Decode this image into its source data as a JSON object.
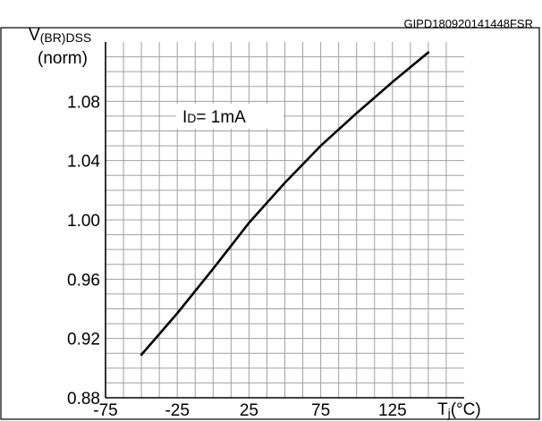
{
  "figure_id": "GIPD180920141448FSR",
  "chart_data": {
    "type": "line",
    "title": "",
    "ylabel": {
      "main": "V",
      "sub": "(BR)DSS",
      "unit": "(norm)"
    },
    "xlabel": {
      "main": "T",
      "sub": "j",
      "unit": "(°C)"
    },
    "xlim": [
      -75,
      175
    ],
    "ylim": [
      0.88,
      1.12
    ],
    "x_ticks": [
      -75,
      -25,
      25,
      75,
      125
    ],
    "y_ticks": [
      "0.88",
      "0.92",
      "0.96",
      "1.00",
      "1.04",
      "1.08"
    ],
    "annotation": {
      "main": "I",
      "sub": "D",
      "rest": "= 1mA"
    },
    "grid": true,
    "series": [
      {
        "x": [
          -50,
          -25,
          0,
          25,
          50,
          75,
          100,
          125,
          150
        ],
        "y": [
          0.909,
          0.937,
          0.967,
          0.998,
          1.025,
          1.05,
          1.072,
          1.093,
          1.113
        ]
      }
    ]
  }
}
